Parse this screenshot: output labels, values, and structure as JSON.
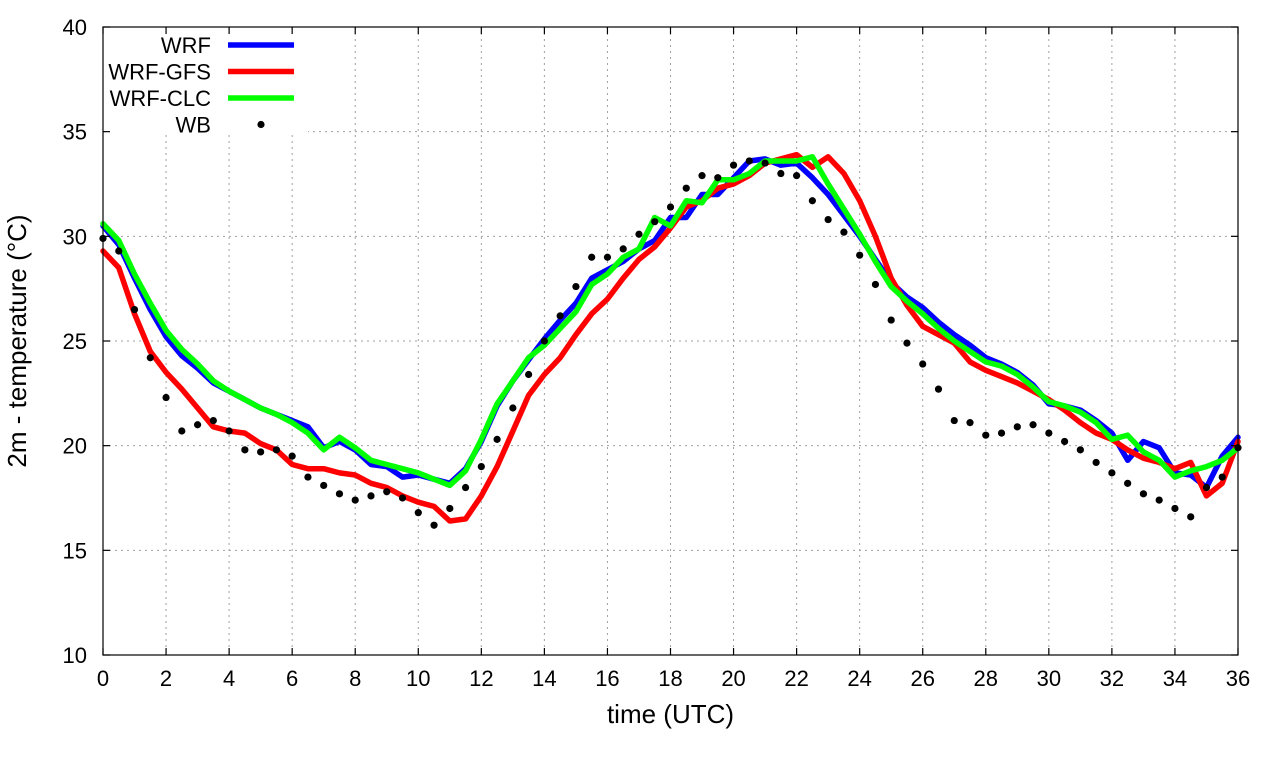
{
  "chart_data": {
    "type": "line",
    "xlabel": "time (UTC)",
    "ylabel": "2m - temperature (°C)",
    "xlim": [
      0,
      36
    ],
    "ylim": [
      10,
      40
    ],
    "xticks": [
      0,
      2,
      4,
      6,
      8,
      10,
      12,
      14,
      16,
      18,
      20,
      22,
      24,
      26,
      28,
      30,
      32,
      34,
      36
    ],
    "yticks": [
      10,
      15,
      20,
      25,
      30,
      35,
      40
    ],
    "grid": true,
    "legend_position": "top-left",
    "series": [
      {
        "name": "WRF",
        "style": "line",
        "color": "#0000ff",
        "x": [
          0,
          0.5,
          1,
          1.5,
          2,
          2.5,
          3,
          3.5,
          4,
          4.5,
          5,
          5.5,
          6,
          6.5,
          7,
          7.5,
          8,
          8.5,
          9,
          9.5,
          10,
          10.5,
          11,
          11.5,
          12,
          12.5,
          13,
          13.5,
          14,
          14.5,
          15,
          15.5,
          16,
          16.5,
          17,
          17.5,
          18,
          18.5,
          19,
          19.5,
          20,
          20.5,
          21,
          21.5,
          22,
          22.5,
          23,
          23.5,
          24,
          24.5,
          25,
          25.5,
          26,
          26.5,
          27,
          27.5,
          28,
          28.5,
          29,
          29.5,
          30,
          30.5,
          31,
          31.5,
          32,
          32.5,
          33,
          33.5,
          34,
          34.5,
          35,
          35.5,
          36
        ],
        "y": [
          30.5,
          29.6,
          28.0,
          26.5,
          25.2,
          24.3,
          23.7,
          23.0,
          22.6,
          22.2,
          21.8,
          21.5,
          21.2,
          20.9,
          19.9,
          20.2,
          19.8,
          19.1,
          19.0,
          18.5,
          18.6,
          18.4,
          18.2,
          18.9,
          20.2,
          21.9,
          23.1,
          24.1,
          25.1,
          26.0,
          26.8,
          28.0,
          28.4,
          28.8,
          29.4,
          29.8,
          30.9,
          30.9,
          32.0,
          32.0,
          32.8,
          33.6,
          33.7,
          33.4,
          33.5,
          32.8,
          32.0,
          31.0,
          30.0,
          28.9,
          27.8,
          27.1,
          26.6,
          25.9,
          25.3,
          24.8,
          24.2,
          23.9,
          23.5,
          22.9,
          22.0,
          21.9,
          21.7,
          21.2,
          20.6,
          19.3,
          20.2,
          19.9,
          18.7,
          18.6,
          18.0,
          19.5,
          20.4
        ]
      },
      {
        "name": "WRF-GFS",
        "style": "line",
        "color": "#ff0000",
        "x": [
          0,
          0.5,
          1,
          1.5,
          2,
          2.5,
          3,
          3.5,
          4,
          4.5,
          5,
          5.5,
          6,
          6.5,
          7,
          7.5,
          8,
          8.5,
          9,
          9.5,
          10,
          10.5,
          11,
          11.5,
          12,
          12.5,
          13,
          13.5,
          14,
          14.5,
          15,
          15.5,
          16,
          16.5,
          17,
          17.5,
          18,
          18.5,
          19,
          19.5,
          20,
          20.5,
          21,
          21.5,
          22,
          22.5,
          23,
          23.5,
          24,
          24.5,
          25,
          25.5,
          26,
          26.5,
          27,
          27.5,
          28,
          28.5,
          29,
          29.5,
          30,
          30.5,
          31,
          31.5,
          32,
          32.5,
          33,
          33.5,
          34,
          34.5,
          35,
          35.5,
          36
        ],
        "y": [
          29.3,
          28.5,
          26.3,
          24.5,
          23.5,
          22.7,
          21.8,
          20.9,
          20.7,
          20.6,
          20.1,
          19.8,
          19.1,
          18.9,
          18.9,
          18.7,
          18.6,
          18.2,
          18.0,
          17.6,
          17.3,
          17.1,
          16.4,
          16.5,
          17.6,
          19.0,
          20.7,
          22.4,
          23.4,
          24.2,
          25.3,
          26.3,
          27.0,
          28.0,
          28.9,
          29.5,
          30.4,
          31.4,
          31.7,
          32.3,
          32.5,
          32.9,
          33.5,
          33.7,
          33.9,
          33.3,
          33.8,
          33.0,
          31.7,
          30.0,
          28.0,
          26.7,
          25.7,
          25.3,
          24.9,
          24.0,
          23.6,
          23.3,
          23.0,
          22.6,
          22.2,
          21.7,
          21.1,
          20.6,
          20.3,
          19.8,
          19.4,
          19.2,
          18.9,
          19.2,
          17.6,
          18.2,
          20.2
        ]
      },
      {
        "name": "WRF-CLC",
        "style": "line",
        "color": "#00ff00",
        "x": [
          0,
          0.5,
          1,
          1.5,
          2,
          2.5,
          3,
          3.5,
          4,
          4.5,
          5,
          5.5,
          6,
          6.5,
          7,
          7.5,
          8,
          8.5,
          9,
          9.5,
          10,
          10.5,
          11,
          11.5,
          12,
          12.5,
          13,
          13.5,
          14,
          14.5,
          15,
          15.5,
          16,
          16.5,
          17,
          17.5,
          18,
          18.5,
          19,
          19.5,
          20,
          20.5,
          21,
          21.5,
          22,
          22.5,
          23,
          23.5,
          24,
          24.5,
          25,
          25.5,
          26,
          26.5,
          27,
          27.5,
          28,
          28.5,
          29,
          29.5,
          30,
          30.5,
          31,
          31.5,
          32,
          32.5,
          33,
          33.5,
          34,
          34.5,
          35,
          35.5,
          36
        ],
        "y": [
          30.6,
          29.8,
          28.2,
          26.8,
          25.5,
          24.6,
          23.9,
          23.1,
          22.6,
          22.2,
          21.8,
          21.5,
          21.1,
          20.6,
          19.8,
          20.4,
          19.9,
          19.3,
          19.1,
          18.9,
          18.7,
          18.4,
          18.1,
          18.8,
          20.3,
          22.0,
          23.1,
          24.2,
          24.8,
          25.6,
          26.4,
          27.7,
          28.2,
          29.0,
          29.4,
          30.9,
          30.5,
          31.7,
          31.6,
          32.7,
          32.7,
          33.0,
          33.6,
          33.6,
          33.6,
          33.8,
          32.5,
          31.3,
          30.1,
          28.8,
          27.6,
          26.9,
          26.3,
          25.6,
          25.0,
          24.5,
          24.0,
          23.8,
          23.4,
          22.8,
          22.1,
          21.9,
          21.6,
          21.1,
          20.3,
          20.5,
          19.7,
          19.3,
          18.5,
          18.8,
          19.0,
          19.3,
          19.9
        ]
      },
      {
        "name": "WB",
        "style": "points",
        "color": "#000000",
        "x": [
          0,
          0.5,
          1,
          1.5,
          2,
          2.5,
          3,
          3.5,
          4,
          4.5,
          5,
          5.5,
          6,
          6.5,
          7,
          7.5,
          8,
          8.5,
          9,
          9.5,
          10,
          10.5,
          11,
          11.5,
          12,
          12.5,
          13,
          13.5,
          14,
          14.5,
          15,
          15.5,
          16,
          16.5,
          17,
          17.5,
          18,
          18.5,
          19,
          19.5,
          20,
          20.5,
          21,
          21.5,
          22,
          22.5,
          23,
          23.5,
          24,
          24.5,
          25,
          25.5,
          26,
          26.5,
          27,
          27.5,
          28,
          28.5,
          29,
          29.5,
          30,
          30.5,
          31,
          31.5,
          32,
          32.5,
          33,
          33.5,
          34,
          34.5,
          35,
          35.5,
          36
        ],
        "y": [
          29.9,
          29.3,
          26.5,
          24.2,
          22.3,
          20.7,
          21.0,
          21.2,
          20.7,
          19.8,
          19.7,
          19.8,
          19.5,
          18.5,
          18.1,
          17.7,
          17.4,
          17.6,
          17.8,
          17.5,
          16.8,
          16.2,
          17.0,
          18.0,
          19.0,
          20.3,
          21.8,
          23.4,
          25.0,
          26.2,
          27.6,
          29.0,
          29.0,
          29.4,
          30.1,
          30.7,
          31.4,
          32.3,
          32.9,
          32.8,
          33.4,
          33.6,
          33.5,
          33.0,
          32.9,
          31.7,
          30.8,
          30.2,
          29.1,
          27.7,
          26.0,
          24.9,
          23.9,
          22.7,
          21.2,
          21.1,
          20.5,
          20.6,
          20.9,
          21.0,
          20.6,
          20.2,
          19.8,
          19.2,
          18.7,
          18.2,
          17.7,
          17.4,
          17.0,
          16.6,
          18.0,
          18.5,
          19.9
        ]
      }
    ]
  }
}
